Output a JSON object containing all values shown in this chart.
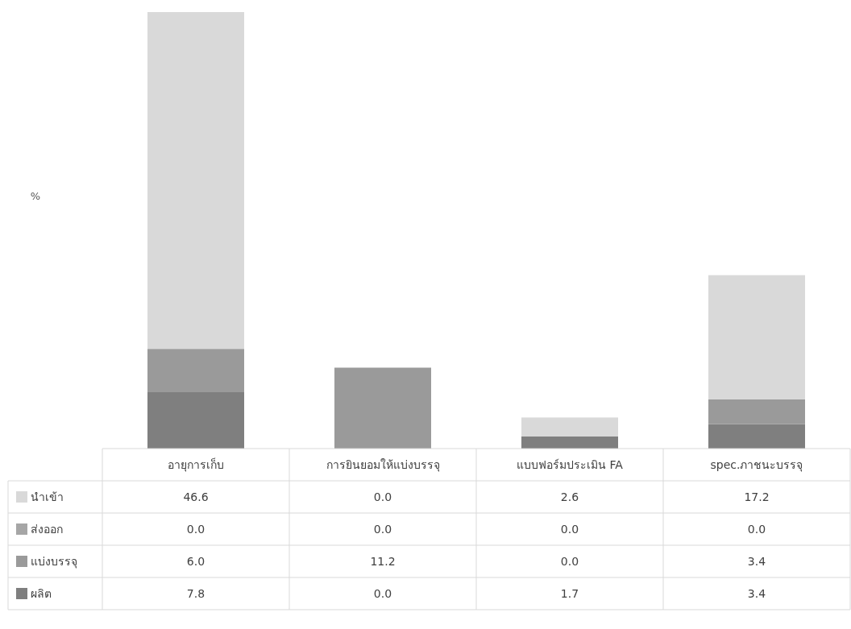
{
  "chart_data": {
    "type": "bar",
    "stacked": true,
    "annotations": [
      "%"
    ],
    "legend": "bottom left",
    "categories": [
      "อายุการเก็บ",
      "การยินยอมให้แบ่งบรรจุ",
      "แบบฟอร์มประเมิน  FA",
      "spec.ภาชนะบรรจุ"
    ],
    "series": [
      {
        "name": "ผลิต",
        "color": "#7f7f7f",
        "values": [
          7.8,
          0.0,
          1.7,
          3.4
        ],
        "value_labels": [
          "7.8",
          "0.0",
          "1.7",
          "3.4"
        ]
      },
      {
        "name": "แบ่งบรรจุ",
        "color": "#9a9a9a",
        "values": [
          6.0,
          11.2,
          0.0,
          3.4
        ],
        "value_labels": [
          "6.0",
          "11.2",
          "0.0",
          "3.4"
        ]
      },
      {
        "name": "ส่งออก",
        "color": "#a6a6a6",
        "values": [
          0.0,
          0.0,
          0.0,
          0.0
        ],
        "value_labels": [
          "0.0",
          "0.0",
          "0.0",
          "0.0"
        ]
      },
      {
        "name": "นำเข้า",
        "color": "#d9d9d9",
        "values": [
          46.6,
          0.0,
          2.6,
          17.2
        ],
        "value_labels": [
          "46.6",
          "0.0",
          "2.6",
          "17.2"
        ]
      }
    ]
  }
}
